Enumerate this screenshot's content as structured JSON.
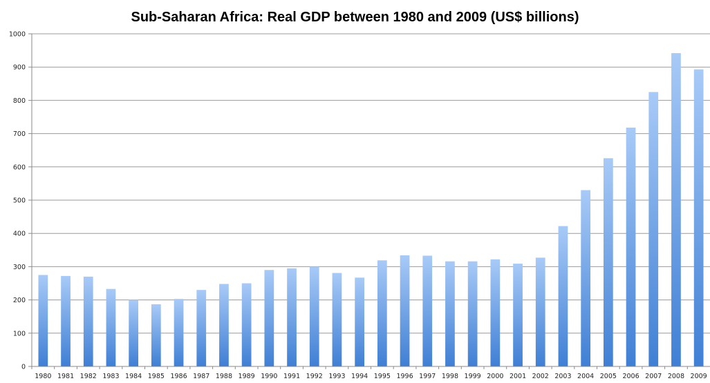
{
  "chart_data": {
    "type": "bar",
    "title": "Sub-Saharan Africa: Real GDP between 1980 and 2009 (US$ billions)",
    "xlabel": "",
    "ylabel": "",
    "categories": [
      "1980",
      "1981",
      "1982",
      "1983",
      "1984",
      "1985",
      "1986",
      "1987",
      "1988",
      "1989",
      "1990",
      "1991",
      "1992",
      "1993",
      "1994",
      "1995",
      "1996",
      "1997",
      "1998",
      "1999",
      "2000",
      "2001",
      "2002",
      "2003",
      "2004",
      "2005",
      "2006",
      "2007",
      "2008",
      "2009"
    ],
    "values": [
      275,
      272,
      270,
      233,
      200,
      187,
      203,
      230,
      248,
      250,
      290,
      295,
      300,
      281,
      267,
      319,
      334,
      333,
      316,
      316,
      322,
      309,
      327,
      422,
      530,
      626,
      718,
      825,
      942,
      893
    ],
    "ylim": [
      0,
      1000
    ],
    "yticks": [
      0,
      100,
      200,
      300,
      400,
      500,
      600,
      700,
      800,
      900,
      1000
    ],
    "grid": true,
    "legend": "none",
    "colors": {
      "bar_top": "#a8caf7",
      "bar_bottom": "#3f7fd4",
      "gridline": "#9a9a9a",
      "axis": "#8a8a8a"
    }
  }
}
